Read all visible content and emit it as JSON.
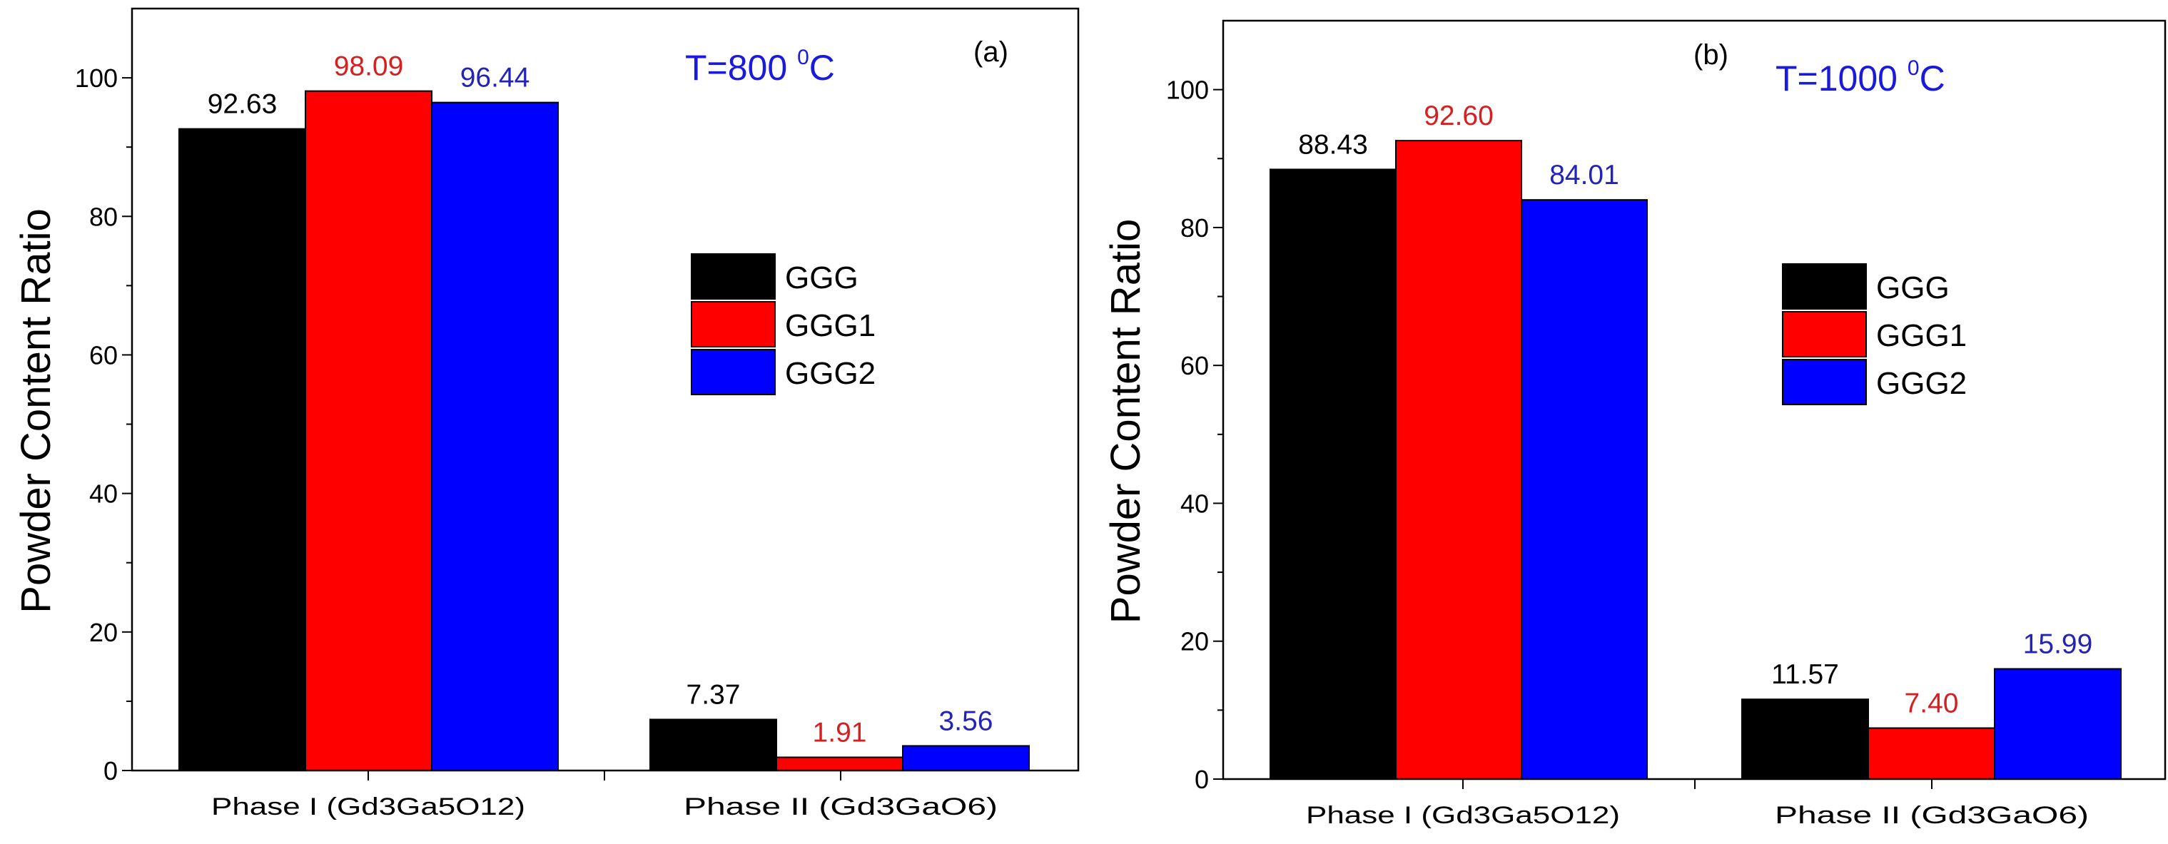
{
  "chart_data": [
    {
      "type": "bar",
      "panel_label": "(a)",
      "annotation": {
        "text": "T=800 ",
        "superscript": "0",
        "unit": "C",
        "color": "#1a1adc"
      },
      "ylabel": "Powder Content Ratio",
      "xlabel": "",
      "ylim": [
        0,
        110
      ],
      "yticks": [
        "0",
        "20",
        "40",
        "60",
        "80",
        "100"
      ],
      "categories": [
        "Phase I (Gd3Ga5O12)",
        "Phase II (Gd3GaO6)"
      ],
      "legend_position": "center-right",
      "grid": false,
      "series": [
        {
          "name": "GGG",
          "color": "#000000",
          "label_color": "#000000",
          "values": [
            92.63,
            7.37
          ],
          "labels": [
            "92.63",
            "7.37"
          ]
        },
        {
          "name": "GGG1",
          "color": "#ff0000",
          "label_color": "#d42020",
          "values": [
            98.09,
            1.91
          ],
          "labels": [
            "98.09",
            "1.91"
          ]
        },
        {
          "name": "GGG2",
          "color": "#0000ff",
          "label_color": "#2323b8",
          "values": [
            96.44,
            3.56
          ],
          "labels": [
            "96.44",
            "3.56"
          ]
        }
      ]
    },
    {
      "type": "bar",
      "panel_label": "(b)",
      "annotation": {
        "text": "T=1000 ",
        "superscript": "0",
        "unit": "C",
        "color": "#1a1adc"
      },
      "ylabel": "Powder Content Ratio",
      "xlabel": "",
      "ylim": [
        0,
        110
      ],
      "yticks": [
        "0",
        "20",
        "40",
        "60",
        "80",
        "100"
      ],
      "categories": [
        "Phase I (Gd3Ga5O12)",
        "Phase II (Gd3GaO6)"
      ],
      "legend_position": "center-right",
      "grid": false,
      "series": [
        {
          "name": "GGG",
          "color": "#000000",
          "label_color": "#000000",
          "values": [
            88.43,
            11.57
          ],
          "labels": [
            "88.43",
            "11.57"
          ]
        },
        {
          "name": "GGG1",
          "color": "#ff0000",
          "label_color": "#d42020",
          "values": [
            92.6,
            7.4
          ],
          "labels": [
            "92.60",
            "7.40"
          ]
        },
        {
          "name": "GGG2",
          "color": "#0000ff",
          "label_color": "#2323b8",
          "values": [
            84.01,
            15.99
          ],
          "labels": [
            "84.01",
            "15.99"
          ]
        }
      ]
    }
  ]
}
